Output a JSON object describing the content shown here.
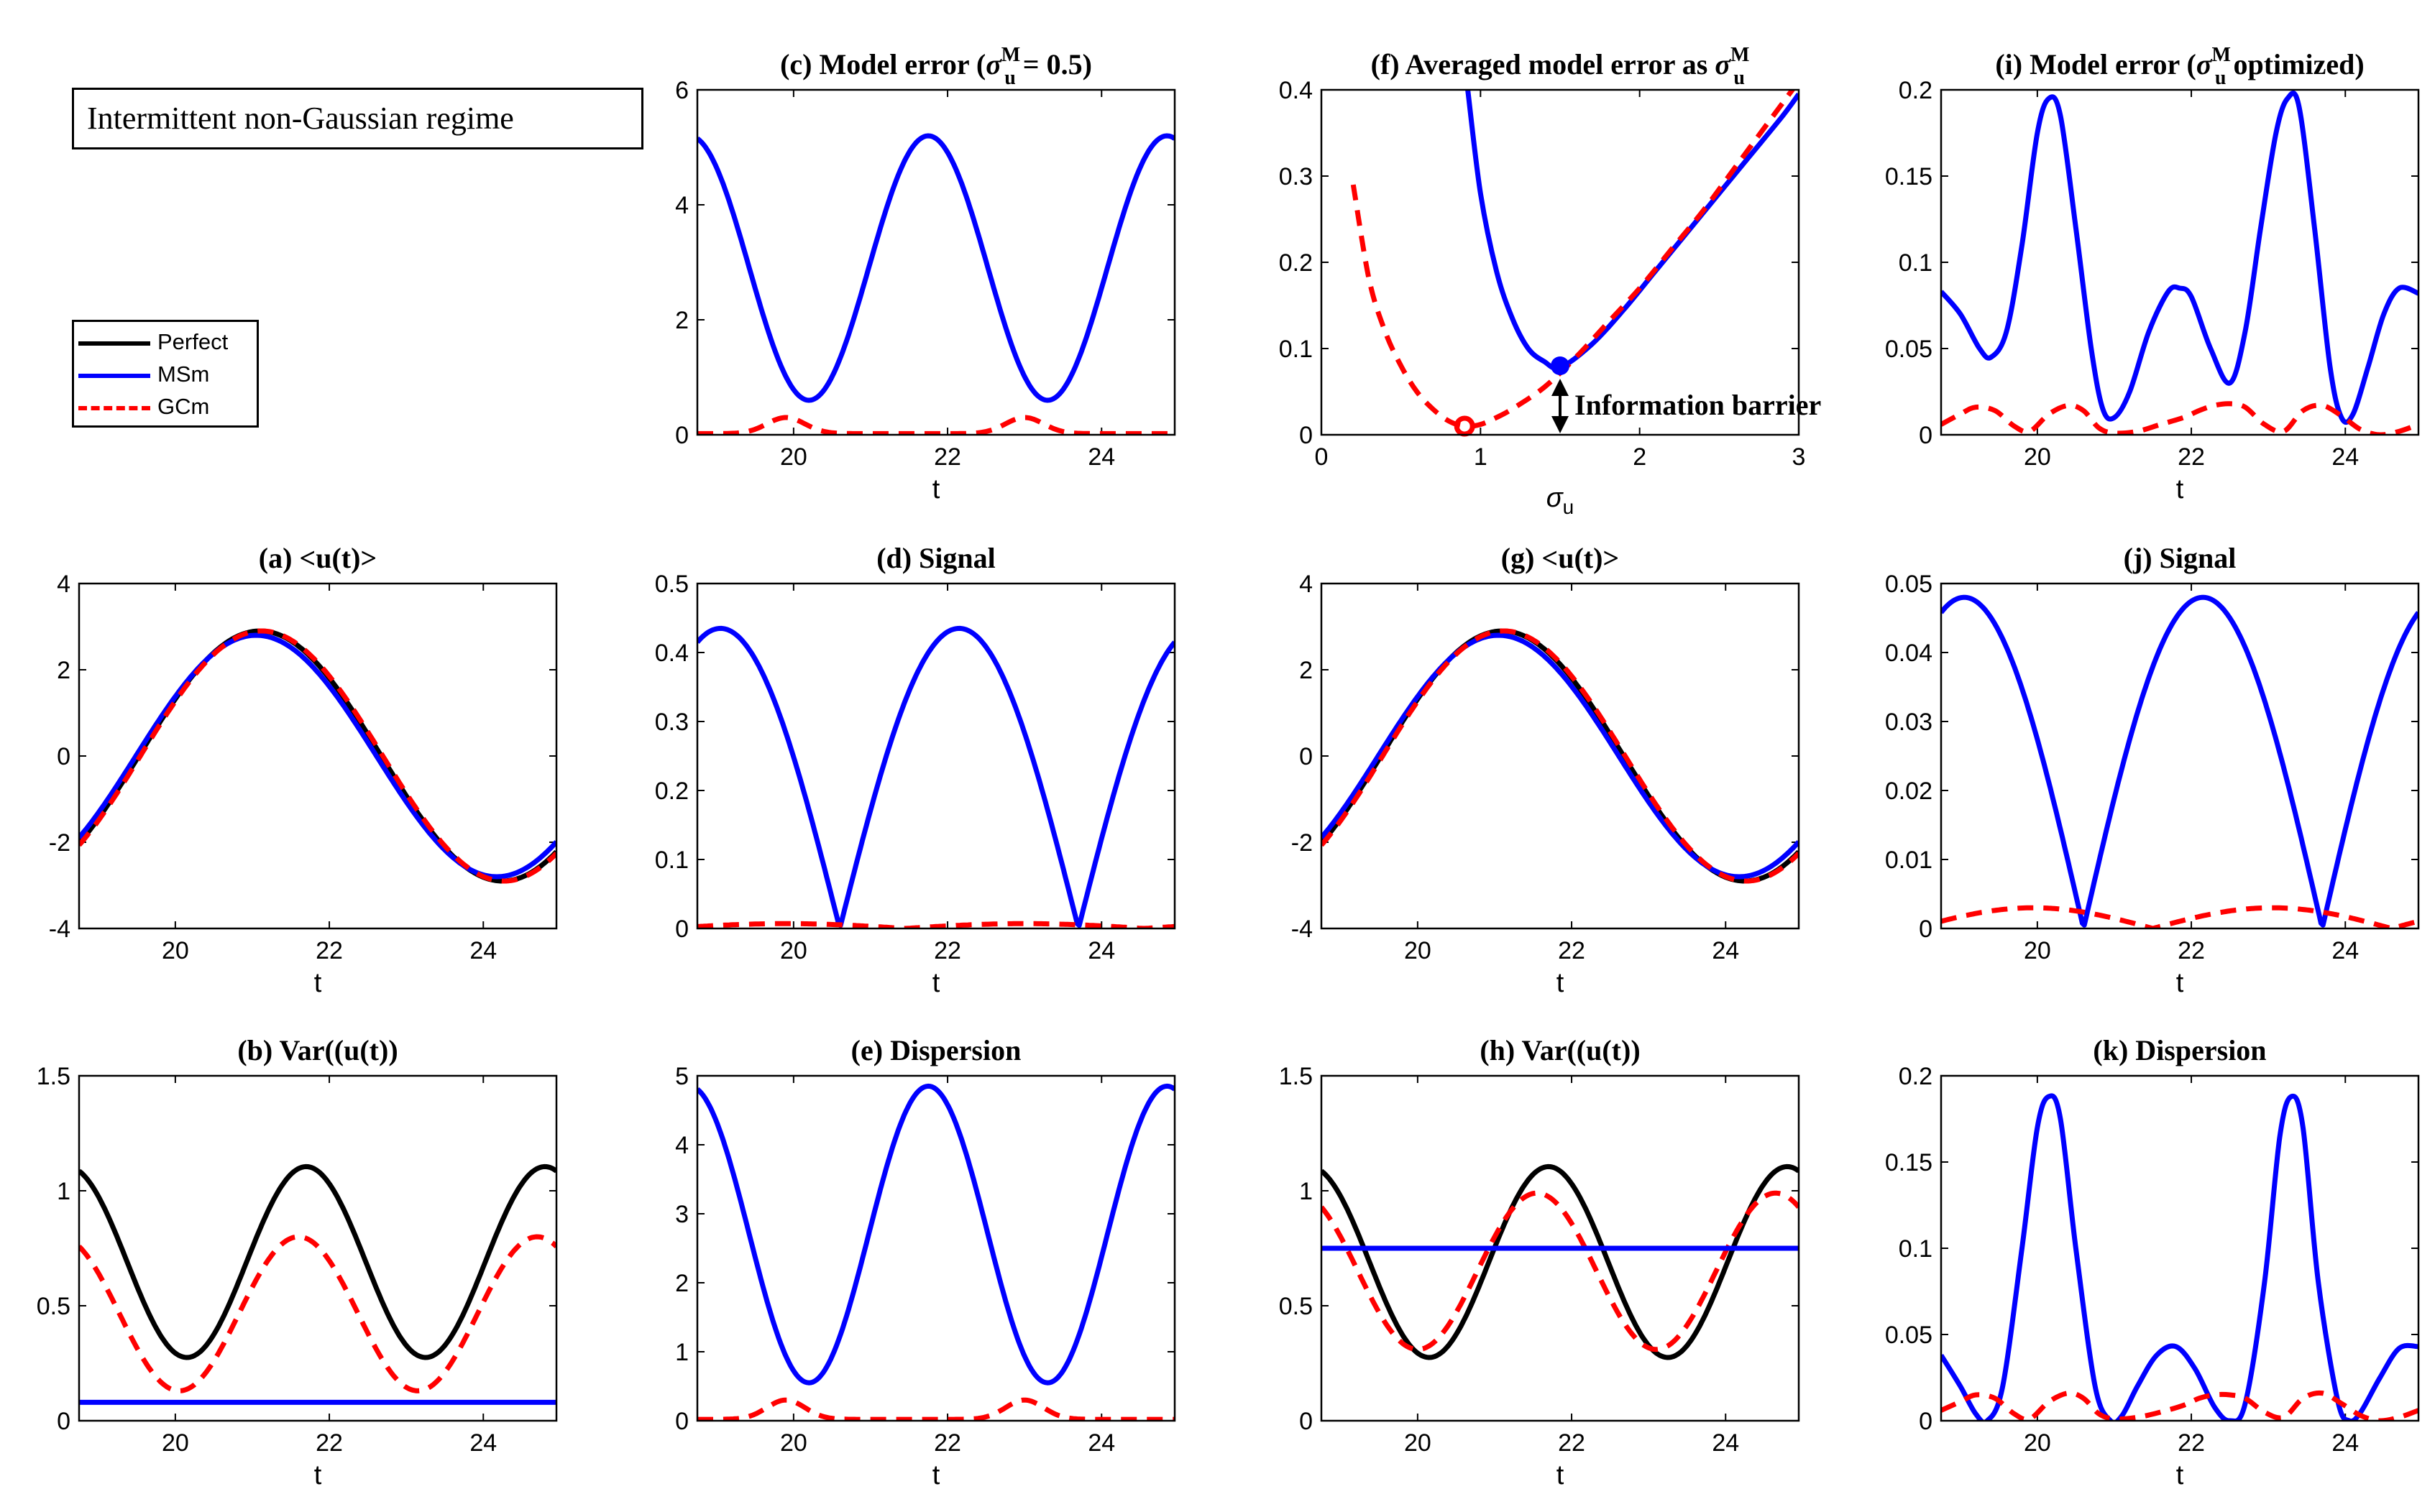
{
  "regime_label": "Intermittent non-Gaussian regime",
  "legend": [
    {
      "label": "Perfect",
      "color": "#000000",
      "style": "solid"
    },
    {
      "label": "MSm",
      "color": "#0000ff",
      "style": "solid"
    },
    {
      "label": "GCm",
      "color": "#ff0000",
      "style": "dashed"
    }
  ],
  "annotation": "Information barrier",
  "chart_data": [
    {
      "id": "c",
      "type": "line",
      "title": "(c)  Model error (σuM = 0.5)",
      "title_parts": {
        "pre": "(c)  Model error (",
        "sym": "σ",
        "sub": "u",
        "sup": "M",
        "post": " = 0.5)"
      },
      "xlabel": "t",
      "ylabel": "",
      "xlim": [
        18.75,
        24.95
      ],
      "ylim": [
        0,
        6
      ],
      "xticks": [
        20,
        22,
        24
      ],
      "yticks": [
        0,
        2,
        4,
        6
      ],
      "series": [
        {
          "name": "MSm",
          "kind": "cos",
          "mean": 2.9,
          "amp": 2.3,
          "period": 3.1,
          "peak": 21.75,
          "color": "#0000ff",
          "style": "solid"
        },
        {
          "name": "GCm",
          "kind": "bumps",
          "base": 0.02,
          "amp": 0.28,
          "centers": [
            19.9,
            23.0
          ],
          "width": 0.35,
          "color": "#ff0000",
          "style": "dashed"
        }
      ]
    },
    {
      "id": "f",
      "type": "line",
      "title": "(f)  Averaged model error as σuM",
      "title_parts": {
        "pre": "(f)  Averaged model error as ",
        "sym": "σ",
        "sub": "u",
        "sup": "M",
        "post": ""
      },
      "xlabel": "σu",
      "xlabel_parts": {
        "sym": "σ",
        "sub": "u"
      },
      "ylabel": "",
      "xlim": [
        0,
        3
      ],
      "ylim": [
        0,
        0.4
      ],
      "xticks": [
        0,
        1,
        2,
        3
      ],
      "yticks": [
        0,
        0.1,
        0.2,
        0.3,
        0.4
      ],
      "series": [
        {
          "name": "MSm",
          "kind": "points",
          "color": "#0000ff",
          "style": "solid",
          "x": [
            0.92,
            1.0,
            1.1,
            1.2,
            1.3,
            1.4,
            1.5,
            1.7,
            1.9,
            2.1,
            2.3,
            2.5,
            2.7,
            2.9,
            3.0
          ],
          "y": [
            0.4,
            0.28,
            0.19,
            0.135,
            0.1,
            0.085,
            0.078,
            0.105,
            0.145,
            0.19,
            0.235,
            0.28,
            0.325,
            0.37,
            0.395
          ]
        },
        {
          "name": "GCm",
          "kind": "points",
          "color": "#ff0000",
          "style": "dashed",
          "x": [
            0.2,
            0.3,
            0.4,
            0.5,
            0.6,
            0.7,
            0.8,
            0.9,
            1.0,
            1.1,
            1.2,
            1.4,
            1.6,
            1.8,
            2.0,
            2.2,
            2.4,
            2.6,
            2.8,
            3.0
          ],
          "y": [
            0.29,
            0.18,
            0.12,
            0.08,
            0.05,
            0.03,
            0.016,
            0.01,
            0.012,
            0.02,
            0.03,
            0.055,
            0.09,
            0.13,
            0.17,
            0.215,
            0.26,
            0.31,
            0.36,
            0.41
          ]
        }
      ],
      "markers": [
        {
          "x": 1.5,
          "y": 0.08,
          "color": "#0000ff",
          "shape": "filled-circle"
        },
        {
          "x": 0.9,
          "y": 0.01,
          "color": "#ff0000",
          "shape": "ring"
        }
      ],
      "arrow": {
        "x": 1.5,
        "y_from": 0.0,
        "y_to": 0.08
      }
    },
    {
      "id": "i",
      "type": "line",
      "title": "(i)  Model error (σuM optimized)",
      "title_parts": {
        "pre": "(i)  Model error (",
        "sym": "σ",
        "sub": "u",
        "sup": "M",
        "post": " optimized)"
      },
      "xlabel": "t",
      "ylabel": "",
      "xlim": [
        18.75,
        24.95
      ],
      "ylim": [
        0,
        0.2
      ],
      "xticks": [
        20,
        22,
        24
      ],
      "yticks": [
        0,
        0.05,
        0.1,
        0.15,
        0.2
      ],
      "series": [
        {
          "name": "MSm",
          "kind": "points",
          "color": "#0000ff",
          "style": "solid",
          "x": [
            18.75,
            19.0,
            19.25,
            19.4,
            19.6,
            19.8,
            20.0,
            20.15,
            20.3,
            20.5,
            20.7,
            20.85,
            21.0,
            21.2,
            21.45,
            21.7,
            21.85,
            22.0,
            22.25,
            22.5,
            22.7,
            22.9,
            23.1,
            23.25,
            23.4,
            23.6,
            23.8,
            23.95,
            24.1,
            24.3,
            24.5,
            24.7,
            24.95
          ],
          "y": [
            0.083,
            0.07,
            0.05,
            0.045,
            0.06,
            0.11,
            0.175,
            0.195,
            0.185,
            0.12,
            0.05,
            0.015,
            0.01,
            0.025,
            0.06,
            0.083,
            0.085,
            0.08,
            0.05,
            0.03,
            0.06,
            0.12,
            0.175,
            0.195,
            0.19,
            0.12,
            0.04,
            0.01,
            0.012,
            0.04,
            0.07,
            0.085,
            0.082
          ]
        },
        {
          "name": "GCm",
          "kind": "points",
          "color": "#ff0000",
          "style": "dashed",
          "x": [
            18.75,
            19.0,
            19.2,
            19.45,
            19.7,
            19.9,
            20.15,
            20.4,
            20.6,
            20.8,
            21.0,
            21.3,
            21.6,
            21.9,
            22.1,
            22.3,
            22.5,
            22.7,
            22.95,
            23.2,
            23.45,
            23.7,
            23.95,
            24.2,
            24.45,
            24.7,
            24.95
          ],
          "y": [
            0.006,
            0.012,
            0.016,
            0.014,
            0.005,
            0.002,
            0.012,
            0.017,
            0.014,
            0.004,
            0.001,
            0.002,
            0.006,
            0.01,
            0.014,
            0.017,
            0.018,
            0.016,
            0.006,
            0.002,
            0.014,
            0.017,
            0.011,
            0.003,
            0.0,
            0.002,
            0.006
          ]
        }
      ]
    },
    {
      "id": "a",
      "type": "line",
      "title": "(a)  <u(t)>",
      "xlabel": "t",
      "ylabel": "",
      "xlim": [
        18.75,
        24.95
      ],
      "ylim": [
        -4,
        4
      ],
      "xticks": [
        20,
        22,
        24
      ],
      "yticks": [
        -4,
        -2,
        0,
        2,
        4
      ],
      "series": [
        {
          "name": "Perfect",
          "kind": "cos",
          "mean": 0.0,
          "amp": 2.9,
          "period": 6.3,
          "peak": 21.1,
          "color": "#000000",
          "style": "solid"
        },
        {
          "name": "MSm",
          "kind": "cos",
          "mean": 0.0,
          "amp": 2.8,
          "period": 6.25,
          "peak": 21.05,
          "color": "#0000ff",
          "style": "solid"
        },
        {
          "name": "GCm",
          "kind": "cos",
          "mean": 0.0,
          "amp": 2.9,
          "period": 6.3,
          "peak": 21.12,
          "color": "#ff0000",
          "style": "dashed"
        }
      ]
    },
    {
      "id": "d",
      "type": "line",
      "title": "(d)  Signal",
      "xlabel": "t",
      "ylabel": "",
      "xlim": [
        18.75,
        24.95
      ],
      "ylim": [
        0,
        0.5
      ],
      "xticks": [
        20,
        22,
        24
      ],
      "yticks": [
        0,
        0.1,
        0.2,
        0.3,
        0.4,
        0.5
      ],
      "series": [
        {
          "name": "MSm",
          "kind": "abscos",
          "amp": 0.435,
          "period": 6.2,
          "peak": 19.05,
          "color": "#0000ff",
          "style": "solid"
        },
        {
          "name": "GCm",
          "kind": "abscos",
          "amp": 0.007,
          "period": 6.2,
          "peak": 19.9,
          "color": "#ff0000",
          "style": "dashed"
        }
      ]
    },
    {
      "id": "g",
      "type": "line",
      "title": "(g)  <u(t)>",
      "xlabel": "t",
      "ylabel": "",
      "xlim": [
        18.75,
        24.95
      ],
      "ylim": [
        -4,
        4
      ],
      "xticks": [
        20,
        22,
        24
      ],
      "yticks": [
        -4,
        -2,
        0,
        2,
        4
      ],
      "series": [
        {
          "name": "Perfect",
          "kind": "cos",
          "mean": 0.0,
          "amp": 2.9,
          "period": 6.3,
          "peak": 21.1,
          "color": "#000000",
          "style": "solid"
        },
        {
          "name": "MSm",
          "kind": "cos",
          "mean": 0.0,
          "amp": 2.8,
          "period": 6.25,
          "peak": 21.05,
          "color": "#0000ff",
          "style": "solid"
        },
        {
          "name": "GCm",
          "kind": "cos",
          "mean": 0.0,
          "amp": 2.9,
          "period": 6.3,
          "peak": 21.12,
          "color": "#ff0000",
          "style": "dashed"
        }
      ]
    },
    {
      "id": "j",
      "type": "line",
      "title": "(j)  Signal",
      "xlabel": "t",
      "ylabel": "",
      "xlim": [
        18.75,
        24.95
      ],
      "ylim": [
        0,
        0.05
      ],
      "xticks": [
        20,
        22,
        24
      ],
      "yticks": [
        0,
        0.01,
        0.02,
        0.03,
        0.04,
        0.05
      ],
      "series": [
        {
          "name": "MSm",
          "kind": "abscos",
          "amp": 0.048,
          "period": 6.2,
          "peak": 19.05,
          "color": "#0000ff",
          "style": "solid"
        },
        {
          "name": "GCm",
          "kind": "abscos",
          "amp": 0.003,
          "period": 6.2,
          "peak": 19.95,
          "color": "#ff0000",
          "style": "dashed"
        }
      ]
    },
    {
      "id": "b",
      "type": "line",
      "title": "(b)  Var((u(t))",
      "xlabel": "t",
      "ylabel": "",
      "xlim": [
        18.75,
        24.95
      ],
      "ylim": [
        0,
        1.5
      ],
      "xticks": [
        20,
        22,
        24
      ],
      "yticks": [
        0,
        0.5,
        1,
        1.5
      ],
      "series": [
        {
          "name": "Perfect",
          "kind": "cos",
          "mean": 0.69,
          "amp": 0.415,
          "period": 3.1,
          "peak": 21.7,
          "color": "#000000",
          "style": "solid"
        },
        {
          "name": "GCm",
          "kind": "cos",
          "mean": 0.465,
          "amp": 0.335,
          "period": 3.1,
          "peak": 21.6,
          "color": "#ff0000",
          "style": "dashed"
        },
        {
          "name": "MSm",
          "kind": "const",
          "value": 0.08,
          "color": "#0000ff",
          "style": "solid"
        }
      ]
    },
    {
      "id": "e",
      "type": "line",
      "title": "(e)  Dispersion",
      "xlabel": "t",
      "ylabel": "",
      "xlim": [
        18.75,
        24.95
      ],
      "ylim": [
        0,
        5
      ],
      "xticks": [
        20,
        22,
        24
      ],
      "yticks": [
        0,
        1,
        2,
        3,
        4,
        5
      ],
      "series": [
        {
          "name": "MSm",
          "kind": "cos",
          "mean": 2.7,
          "amp": 2.15,
          "period": 3.1,
          "peak": 21.75,
          "color": "#0000ff",
          "style": "solid"
        },
        {
          "name": "GCm",
          "kind": "bumps",
          "base": 0.02,
          "amp": 0.28,
          "centers": [
            19.9,
            23.0
          ],
          "width": 0.35,
          "color": "#ff0000",
          "style": "dashed"
        }
      ]
    },
    {
      "id": "h",
      "type": "line",
      "title": "(h)  Var((u(t))",
      "xlabel": "t",
      "ylabel": "",
      "xlim": [
        18.75,
        24.95
      ],
      "ylim": [
        0,
        1.5
      ],
      "xticks": [
        20,
        22,
        24
      ],
      "yticks": [
        0,
        0.5,
        1,
        1.5
      ],
      "series": [
        {
          "name": "Perfect",
          "kind": "cos",
          "mean": 0.69,
          "amp": 0.415,
          "period": 3.1,
          "peak": 21.7,
          "color": "#000000",
          "style": "solid"
        },
        {
          "name": "GCm",
          "kind": "cos",
          "mean": 0.65,
          "amp": 0.34,
          "period": 3.1,
          "peak": 21.55,
          "color": "#ff0000",
          "style": "dashed"
        },
        {
          "name": "MSm",
          "kind": "const",
          "value": 0.75,
          "color": "#0000ff",
          "style": "solid"
        }
      ]
    },
    {
      "id": "k",
      "type": "line",
      "title": "(k)  Dispersion",
      "xlabel": "t",
      "ylabel": "",
      "xlim": [
        18.75,
        24.95
      ],
      "ylim": [
        0,
        0.2
      ],
      "xticks": [
        20,
        22,
        24
      ],
      "yticks": [
        0,
        0.05,
        0.1,
        0.15,
        0.2
      ],
      "series": [
        {
          "name": "MSm",
          "kind": "points",
          "color": "#0000ff",
          "style": "solid",
          "x": [
            18.75,
            19.0,
            19.2,
            19.35,
            19.55,
            19.8,
            20.0,
            20.15,
            20.3,
            20.5,
            20.75,
            20.95,
            21.1,
            21.3,
            21.55,
            21.8,
            22.05,
            22.3,
            22.5,
            22.7,
            22.95,
            23.15,
            23.3,
            23.45,
            23.65,
            23.9,
            24.05,
            24.2,
            24.45,
            24.7,
            24.95
          ],
          "y": [
            0.038,
            0.02,
            0.004,
            0.0,
            0.02,
            0.1,
            0.17,
            0.188,
            0.175,
            0.1,
            0.02,
            0.0,
            0.003,
            0.02,
            0.038,
            0.043,
            0.03,
            0.008,
            0.0,
            0.01,
            0.08,
            0.165,
            0.188,
            0.17,
            0.08,
            0.012,
            0.0,
            0.005,
            0.025,
            0.042,
            0.043
          ]
        },
        {
          "name": "GCm",
          "kind": "points",
          "color": "#ff0000",
          "style": "dashed",
          "x": [
            18.75,
            19.0,
            19.2,
            19.45,
            19.7,
            19.9,
            20.15,
            20.4,
            20.6,
            20.8,
            21.0,
            21.3,
            21.6,
            21.9,
            22.1,
            22.3,
            22.5,
            22.7,
            22.95,
            23.2,
            23.45,
            23.7,
            23.95,
            24.2,
            24.45,
            24.7,
            24.95
          ],
          "y": [
            0.006,
            0.011,
            0.015,
            0.013,
            0.004,
            0.001,
            0.011,
            0.016,
            0.013,
            0.004,
            0.001,
            0.002,
            0.005,
            0.009,
            0.013,
            0.015,
            0.015,
            0.013,
            0.005,
            0.002,
            0.013,
            0.016,
            0.01,
            0.003,
            0.0,
            0.002,
            0.006
          ]
        }
      ]
    }
  ]
}
